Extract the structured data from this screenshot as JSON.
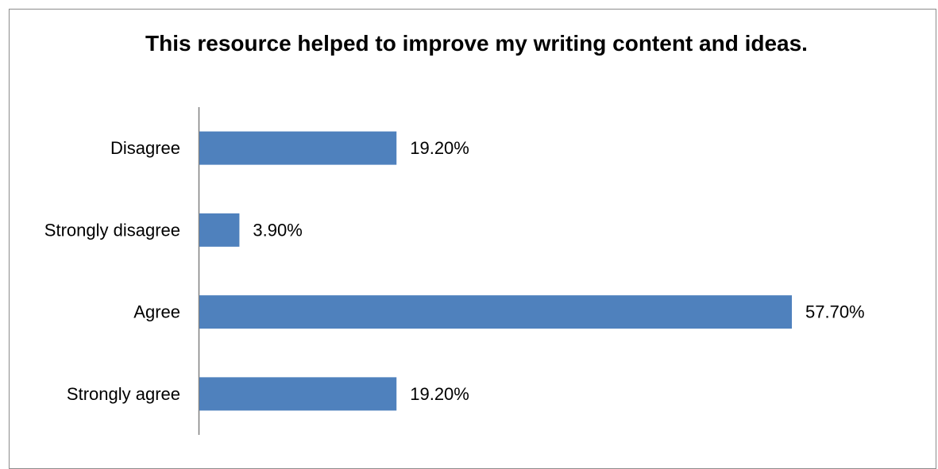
{
  "chart_data": {
    "type": "bar",
    "orientation": "horizontal",
    "title": "This resource helped to improve my writing content and ideas.",
    "categories": [
      "Disagree",
      "Strongly disagree",
      "Agree",
      "Strongly agree"
    ],
    "values": [
      19.2,
      3.9,
      57.7,
      19.2
    ],
    "data_labels": [
      "19.20%",
      "3.90%",
      "57.70%",
      "19.20%"
    ],
    "xlabel": "",
    "ylabel": "",
    "xlim": [
      0,
      57.7
    ],
    "grid": false,
    "legend": "none",
    "bar_color": "#4f81bd"
  }
}
